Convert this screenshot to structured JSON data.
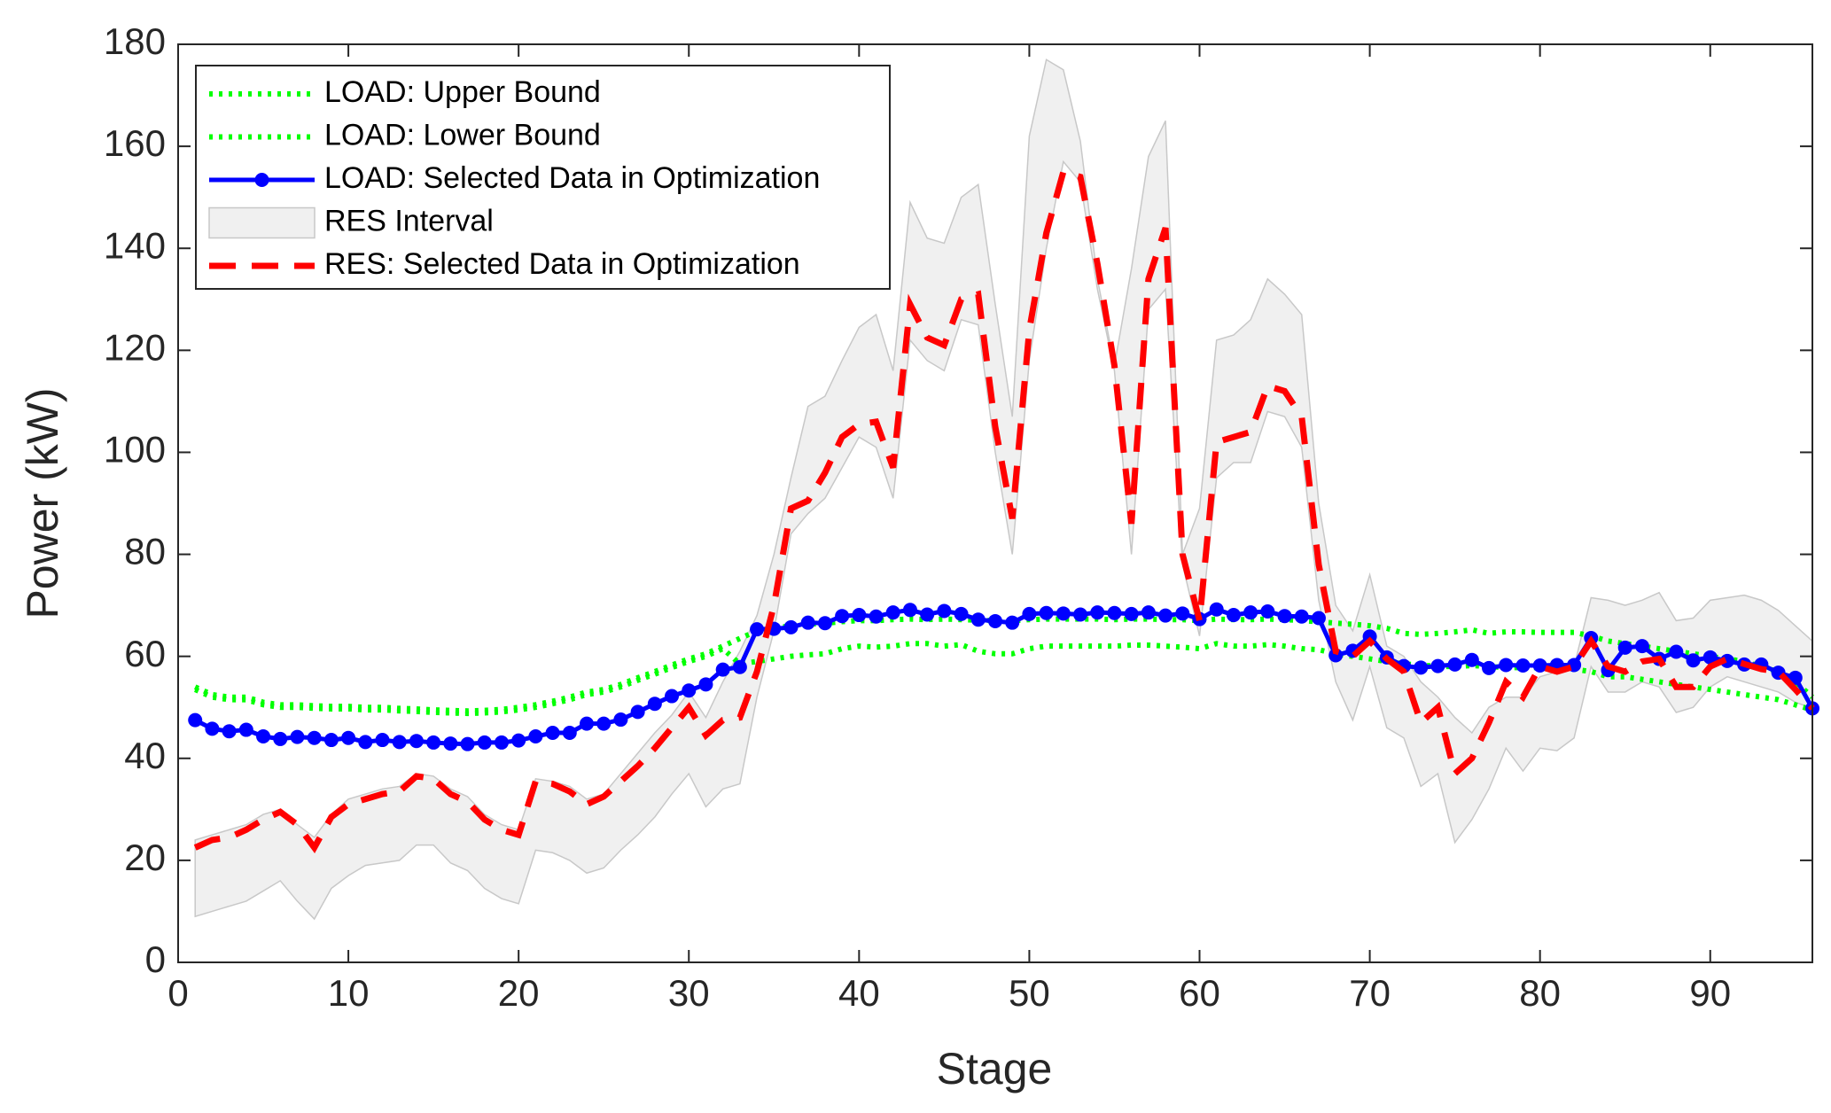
{
  "chart_data": {
    "type": "line",
    "x_label": "Stage",
    "y_label": "Power (kW)",
    "x": [
      1,
      2,
      3,
      4,
      5,
      6,
      7,
      8,
      9,
      10,
      11,
      12,
      13,
      14,
      15,
      16,
      17,
      18,
      19,
      20,
      21,
      22,
      23,
      24,
      25,
      26,
      27,
      28,
      29,
      30,
      31,
      32,
      33,
      34,
      35,
      36,
      37,
      38,
      39,
      40,
      41,
      42,
      43,
      44,
      45,
      46,
      47,
      48,
      49,
      50,
      51,
      52,
      53,
      54,
      55,
      56,
      57,
      58,
      59,
      60,
      61,
      62,
      63,
      64,
      65,
      66,
      67,
      68,
      69,
      70,
      71,
      72,
      73,
      74,
      75,
      76,
      77,
      78,
      79,
      80,
      81,
      82,
      83,
      84,
      85,
      86,
      87,
      88,
      89,
      90,
      91,
      92,
      93,
      94,
      95,
      96
    ],
    "xlim": [
      0,
      96
    ],
    "xticks": [
      0,
      10,
      20,
      30,
      40,
      50,
      60,
      70,
      80,
      90
    ],
    "ylim": [
      0,
      180
    ],
    "yticks": [
      0,
      20,
      40,
      60,
      80,
      100,
      120,
      140,
      160,
      180
    ],
    "legend": "northwest",
    "series": [
      {
        "name": "LOAD: Upper Bound",
        "color": "#00ff00",
        "style": "dotted",
        "values": [
          54,
          52.5,
          52,
          52,
          51,
          50.5,
          50.5,
          50.3,
          50.2,
          50.2,
          50,
          50,
          49.8,
          49.7,
          49.5,
          49.4,
          49.3,
          49.4,
          49.6,
          50,
          50.5,
          51.2,
          52,
          53,
          53.5,
          54.5,
          55.8,
          57,
          58.3,
          59.5,
          60.5,
          62,
          63.5,
          65,
          65.5,
          66,
          66.3,
          66.5,
          66.8,
          67,
          67,
          67.2,
          67.3,
          67.2,
          67.3,
          67.2,
          67.1,
          67,
          67,
          67.2,
          67.3,
          67.3,
          67.3,
          67.3,
          67.2,
          67.3,
          67.3,
          67.2,
          67.2,
          67,
          67.3,
          67.2,
          67.2,
          67.3,
          67.2,
          67,
          66.8,
          66.5,
          66.3,
          66,
          65.5,
          64.5,
          64.3,
          64.5,
          64.8,
          65.2,
          64.5,
          64.8,
          64.8,
          64.7,
          64.7,
          64.7,
          64,
          63,
          62.5,
          62,
          61.5,
          61,
          60.5,
          60,
          59.5,
          59,
          58,
          57,
          55,
          52
        ]
      },
      {
        "name": "LOAD: Lower Bound",
        "color": "#00ff00",
        "style": "dotted",
        "values": [
          53.5,
          52,
          51.5,
          51.5,
          50.5,
          50,
          50,
          49.8,
          49.7,
          49.7,
          49.5,
          49.5,
          49.3,
          49.2,
          49,
          48.9,
          48.8,
          48.9,
          49.1,
          49.5,
          50,
          50.7,
          51.5,
          52.5,
          53,
          54,
          55.3,
          56.5,
          57.8,
          59,
          60,
          61.5,
          58.5,
          59,
          59.5,
          60,
          60.3,
          60.5,
          61.5,
          62,
          61.8,
          62,
          62.5,
          62.5,
          62,
          62.3,
          61,
          60.5,
          60.5,
          61.5,
          62,
          62,
          62,
          62,
          62,
          62.2,
          62.2,
          62,
          61.8,
          61.5,
          62.5,
          62,
          62,
          62.3,
          62,
          61.5,
          61.3,
          60.5,
          60,
          59.5,
          59,
          58.5,
          58.3,
          58,
          58,
          58.2,
          58,
          57.8,
          57.8,
          57.8,
          57.8,
          57.5,
          57,
          56,
          56,
          55.5,
          55,
          54.5,
          54,
          53.5,
          53,
          52.5,
          52,
          51.5,
          50.5,
          49.5
        ]
      },
      {
        "name": "LOAD: Selected Data in Optimization",
        "color": "#0000ff",
        "style": "solid-marker",
        "values": [
          47.5,
          45.8,
          45.3,
          45.6,
          44.3,
          43.8,
          44.2,
          44,
          43.6,
          44,
          43.2,
          43.6,
          43.2,
          43.4,
          43.1,
          42.9,
          42.8,
          43.1,
          43.1,
          43.5,
          44.3,
          45,
          45,
          46.8,
          46.8,
          47.6,
          49.1,
          50.7,
          52.2,
          53.3,
          54.5,
          57.4,
          57.9,
          65.3,
          65.4,
          65.7,
          66.6,
          66.5,
          67.9,
          68.1,
          67.8,
          68.6,
          69.1,
          68.2,
          68.9,
          68.3,
          67.2,
          66.9,
          66.6,
          68.3,
          68.5,
          68.4,
          68.2,
          68.6,
          68.5,
          68.3,
          68.6,
          68,
          68.4,
          67.3,
          69.2,
          68.1,
          68.6,
          68.8,
          67.9,
          67.8,
          67.5,
          60.2,
          61.1,
          63.9,
          59.8,
          58.1,
          57.8,
          58.1,
          58.4,
          59.3,
          57.7,
          58.3,
          58.2,
          58.2,
          58.3,
          58.3,
          63.6,
          57.3,
          61.7,
          62,
          59.5,
          60.9,
          59.2,
          59.8,
          59.1,
          58.4,
          58.4,
          56.8,
          55.8,
          49.8
        ]
      },
      {
        "name": "RES Interval",
        "color": "#f0f0f0",
        "style": "band",
        "upper": [
          24,
          25,
          26,
          27,
          29,
          30,
          27,
          24.5,
          29,
          32,
          33,
          34,
          34.5,
          37,
          36.5,
          34,
          32.5,
          29,
          27,
          26,
          36,
          35.5,
          34.5,
          32,
          33,
          37,
          41,
          45,
          48.5,
          53,
          48,
          55,
          61,
          68,
          80,
          95,
          109,
          111,
          118,
          124.5,
          127,
          116,
          149,
          142,
          141,
          150,
          152.5,
          129,
          107,
          162,
          177,
          175,
          161,
          134,
          117,
          136,
          158,
          165,
          80,
          89,
          122,
          123,
          126,
          134,
          131,
          127,
          90,
          70,
          65,
          76,
          62,
          60,
          55,
          52,
          48,
          45,
          50,
          52,
          52,
          56,
          57,
          58,
          71.5,
          71,
          70,
          71,
          72.5,
          67,
          67.5,
          71,
          71.5,
          72,
          71,
          69,
          66,
          63
        ],
        "lower": [
          9,
          10,
          11,
          12,
          14,
          16,
          12,
          8.5,
          14.5,
          17,
          19,
          19.5,
          20,
          23,
          23,
          19.5,
          18,
          14.5,
          12.5,
          11.5,
          22,
          21.5,
          20,
          17.5,
          18.5,
          22,
          25,
          28.5,
          33,
          37,
          30.5,
          34,
          35,
          52,
          65,
          84,
          88,
          91,
          97,
          103,
          101,
          91,
          122,
          118,
          116,
          126,
          125,
          100,
          80,
          118,
          140,
          157,
          153,
          132,
          116,
          80,
          128,
          132,
          78,
          64,
          95,
          98,
          98,
          108,
          107,
          101,
          71,
          55,
          47.5,
          58,
          46,
          44,
          34.5,
          37,
          23.5,
          28,
          34,
          42,
          37.5,
          42,
          41.5,
          44,
          58,
          53,
          53,
          55,
          54,
          49,
          50,
          54,
          56,
          55,
          54,
          53,
          51,
          49.8
        ]
      },
      {
        "name": "RES: Selected Data in Optimization",
        "color": "#ff0000",
        "style": "dashed",
        "values": [
          22.5,
          24,
          24.5,
          26,
          28,
          29.5,
          27,
          22.5,
          28.5,
          31,
          32,
          33,
          33.5,
          36.5,
          36,
          33,
          31.5,
          28,
          26,
          25,
          35.5,
          35,
          33.5,
          31,
          32.5,
          35.5,
          38.5,
          42,
          46,
          50,
          44.5,
          47.5,
          48,
          57,
          70,
          89,
          90.5,
          96,
          103,
          105.5,
          106,
          97,
          129,
          122.5,
          121,
          130,
          131,
          105,
          87,
          124,
          143,
          155,
          154,
          137,
          117,
          86,
          134,
          144,
          80,
          67,
          102,
          103,
          104,
          113,
          112,
          107,
          78,
          61,
          60,
          63,
          59.5,
          57,
          47,
          50,
          37,
          40,
          47,
          55,
          52,
          58,
          57,
          58,
          63,
          58,
          57,
          59,
          59.5,
          54,
          54,
          58,
          59.5,
          58.5,
          57.5,
          57,
          53.5,
          49.8
        ]
      }
    ]
  }
}
